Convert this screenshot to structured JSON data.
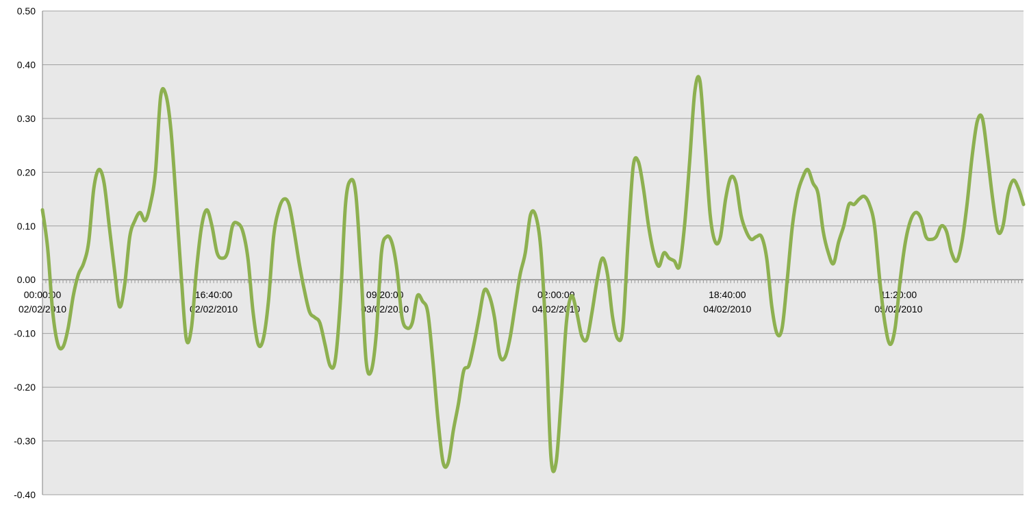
{
  "chart_data": {
    "type": "line",
    "title": "",
    "xlabel": "",
    "ylabel": "",
    "ylim": [
      -0.4,
      0.5
    ],
    "yticks": [
      "0.50",
      "0.40",
      "0.30",
      "0.20",
      "0.10",
      "0.00",
      "-0.10",
      "-0.20",
      "-0.30",
      "-0.40"
    ],
    "xlim": [
      "02/02/2010 00:00:00",
      "05/02/2010 23:30:00"
    ],
    "xtick_labels": [
      {
        "time": "00:00:00",
        "date": "02/02/2010"
      },
      {
        "time": "16:40:00",
        "date": "02/02/2010"
      },
      {
        "time": "09:20:00",
        "date": "03/02/2010"
      },
      {
        "time": "02:00:00",
        "date": "04/02/2010"
      },
      {
        "time": "18:40:00",
        "date": "04/02/2010"
      },
      {
        "time": "11:20:00",
        "date": "05/02/2010"
      }
    ],
    "grid": "horizontal",
    "plot_background": "#e8e8e8",
    "series": [
      {
        "color": "#8db050",
        "points": [
          [
            "02/02/2010 00:00",
            0.13
          ],
          [
            "02/02/2010 00:30",
            0.06
          ],
          [
            "02/02/2010 01:00",
            -0.06
          ],
          [
            "02/02/2010 01:30",
            -0.12
          ],
          [
            "02/02/2010 02:00",
            -0.125
          ],
          [
            "02/02/2010 02:30",
            -0.09
          ],
          [
            "02/02/2010 03:00",
            -0.03
          ],
          [
            "02/02/2010 03:30",
            0.01
          ],
          [
            "02/02/2010 04:00",
            0.03
          ],
          [
            "02/02/2010 04:30",
            0.07
          ],
          [
            "02/02/2010 05:00",
            0.17
          ],
          [
            "02/02/2010 05:30",
            0.205
          ],
          [
            "02/02/2010 06:00",
            0.18
          ],
          [
            "02/02/2010 06:30",
            0.1
          ],
          [
            "02/02/2010 07:00",
            0.02
          ],
          [
            "02/02/2010 07:30",
            -0.05
          ],
          [
            "02/02/2010 08:00",
            -0.01
          ],
          [
            "02/02/2010 08:30",
            0.08
          ],
          [
            "02/02/2010 09:00",
            0.11
          ],
          [
            "02/02/2010 09:30",
            0.125
          ],
          [
            "02/02/2010 10:00",
            0.11
          ],
          [
            "02/02/2010 10:30",
            0.14
          ],
          [
            "02/02/2010 11:00",
            0.2
          ],
          [
            "02/02/2010 11:30",
            0.34
          ],
          [
            "02/02/2010 12:00",
            0.345
          ],
          [
            "02/02/2010 12:30",
            0.28
          ],
          [
            "02/02/2010 13:00",
            0.15
          ],
          [
            "02/02/2010 13:30",
            0.01
          ],
          [
            "02/02/2010 14:00",
            -0.11
          ],
          [
            "02/02/2010 14:30",
            -0.09
          ],
          [
            "02/02/2010 15:00",
            0.02
          ],
          [
            "02/02/2010 15:30",
            0.1
          ],
          [
            "02/02/2010 16:00",
            0.13
          ],
          [
            "02/02/2010 16:30",
            0.1
          ],
          [
            "02/02/2010 17:00",
            0.05
          ],
          [
            "02/02/2010 17:30",
            0.04
          ],
          [
            "02/02/2010 18:00",
            0.05
          ],
          [
            "02/02/2010 18:30",
            0.1
          ],
          [
            "02/02/2010 19:00",
            0.105
          ],
          [
            "02/02/2010 19:30",
            0.09
          ],
          [
            "02/02/2010 20:00",
            0.04
          ],
          [
            "02/02/2010 20:30",
            -0.06
          ],
          [
            "02/02/2010 21:00",
            -0.12
          ],
          [
            "02/02/2010 21:30",
            -0.11
          ],
          [
            "02/02/2010 22:00",
            -0.04
          ],
          [
            "02/02/2010 22:30",
            0.08
          ],
          [
            "02/02/2010 23:00",
            0.13
          ],
          [
            "02/02/2010 23:30",
            0.15
          ],
          [
            "03/02/2010 00:00",
            0.14
          ],
          [
            "03/02/2010 00:30",
            0.09
          ],
          [
            "03/02/2010 01:00",
            0.03
          ],
          [
            "03/02/2010 01:30",
            -0.02
          ],
          [
            "03/02/2010 02:00",
            -0.06
          ],
          [
            "03/02/2010 02:30",
            -0.07
          ],
          [
            "03/02/2010 03:00",
            -0.08
          ],
          [
            "03/02/2010 03:30",
            -0.12
          ],
          [
            "03/02/2010 04:00",
            -0.16
          ],
          [
            "03/02/2010 04:30",
            -0.15
          ],
          [
            "03/02/2010 05:00",
            -0.04
          ],
          [
            "03/02/2010 05:30",
            0.14
          ],
          [
            "03/02/2010 06:00",
            0.185
          ],
          [
            "03/02/2010 06:30",
            0.16
          ],
          [
            "03/02/2010 07:00",
            0.02
          ],
          [
            "03/02/2010 07:30",
            -0.15
          ],
          [
            "03/02/2010 08:00",
            -0.17
          ],
          [
            "03/02/2010 08:30",
            -0.1
          ],
          [
            "03/02/2010 09:00",
            0.05
          ],
          [
            "03/02/2010 09:30",
            0.08
          ],
          [
            "03/02/2010 10:00",
            0.07
          ],
          [
            "03/02/2010 10:30",
            0.02
          ],
          [
            "03/02/2010 11:00",
            -0.07
          ],
          [
            "03/02/2010 11:30",
            -0.09
          ],
          [
            "03/02/2010 12:00",
            -0.08
          ],
          [
            "03/02/2010 12:30",
            -0.03
          ],
          [
            "03/02/2010 13:00",
            -0.04
          ],
          [
            "03/02/2010 13:30",
            -0.06
          ],
          [
            "03/02/2010 14:00",
            -0.15
          ],
          [
            "03/02/2010 14:30",
            -0.26
          ],
          [
            "03/02/2010 15:00",
            -0.34
          ],
          [
            "03/02/2010 15:30",
            -0.34
          ],
          [
            "03/02/2010 16:00",
            -0.28
          ],
          [
            "03/02/2010 16:30",
            -0.23
          ],
          [
            "03/02/2010 17:00",
            -0.17
          ],
          [
            "03/02/2010 17:30",
            -0.16
          ],
          [
            "03/02/2010 18:00",
            -0.12
          ],
          [
            "03/02/2010 18:30",
            -0.07
          ],
          [
            "03/02/2010 19:00",
            -0.02
          ],
          [
            "03/02/2010 19:30",
            -0.03
          ],
          [
            "03/02/2010 20:00",
            -0.07
          ],
          [
            "03/02/2010 20:30",
            -0.14
          ],
          [
            "03/02/2010 21:00",
            -0.145
          ],
          [
            "03/02/2010 21:30",
            -0.11
          ],
          [
            "03/02/2010 22:00",
            -0.05
          ],
          [
            "03/02/2010 22:30",
            0.01
          ],
          [
            "03/02/2010 23:00",
            0.05
          ],
          [
            "03/02/2010 23:30",
            0.12
          ],
          [
            "04/02/2010 00:00",
            0.12
          ],
          [
            "04/02/2010 00:30",
            0.06
          ],
          [
            "04/02/2010 01:00",
            -0.1
          ],
          [
            "04/02/2010 01:30",
            -0.33
          ],
          [
            "04/02/2010 02:00",
            -0.34
          ],
          [
            "04/02/2010 02:30",
            -0.22
          ],
          [
            "04/02/2010 03:00",
            -0.08
          ],
          [
            "04/02/2010 03:30",
            -0.03
          ],
          [
            "04/02/2010 04:00",
            -0.06
          ],
          [
            "04/02/2010 04:30",
            -0.105
          ],
          [
            "04/02/2010 05:00",
            -0.11
          ],
          [
            "04/02/2010 05:30",
            -0.06
          ],
          [
            "04/02/2010 06:00",
            0.0
          ],
          [
            "04/02/2010 06:30",
            0.04
          ],
          [
            "04/02/2010 07:00",
            0.01
          ],
          [
            "04/02/2010 07:30",
            -0.07
          ],
          [
            "04/02/2010 08:00",
            -0.11
          ],
          [
            "04/02/2010 08:30",
            -0.09
          ],
          [
            "04/02/2010 09:00",
            0.07
          ],
          [
            "04/02/2010 09:30",
            0.21
          ],
          [
            "04/02/2010 10:00",
            0.22
          ],
          [
            "04/02/2010 10:30",
            0.17
          ],
          [
            "04/02/2010 11:00",
            0.1
          ],
          [
            "04/02/2010 11:30",
            0.05
          ],
          [
            "04/02/2010 12:00",
            0.025
          ],
          [
            "04/02/2010 12:30",
            0.05
          ],
          [
            "04/02/2010 13:00",
            0.04
          ],
          [
            "04/02/2010 13:30",
            0.035
          ],
          [
            "04/02/2010 14:00",
            0.025
          ],
          [
            "04/02/2010 14:30",
            0.1
          ],
          [
            "04/02/2010 15:00",
            0.22
          ],
          [
            "04/02/2010 15:30",
            0.35
          ],
          [
            "04/02/2010 16:00",
            0.37
          ],
          [
            "04/02/2010 16:30",
            0.25
          ],
          [
            "04/02/2010 17:00",
            0.12
          ],
          [
            "04/02/2010 17:30",
            0.07
          ],
          [
            "04/02/2010 18:00",
            0.08
          ],
          [
            "04/02/2010 18:30",
            0.15
          ],
          [
            "04/02/2010 19:00",
            0.19
          ],
          [
            "04/02/2010 19:30",
            0.18
          ],
          [
            "04/02/2010 20:00",
            0.12
          ],
          [
            "04/02/2010 20:30",
            0.09
          ],
          [
            "04/02/2010 21:00",
            0.075
          ],
          [
            "04/02/2010 21:30",
            0.08
          ],
          [
            "04/02/2010 22:00",
            0.08
          ],
          [
            "04/02/2010 22:30",
            0.04
          ],
          [
            "04/02/2010 23:00",
            -0.05
          ],
          [
            "04/02/2010 23:30",
            -0.1
          ],
          [
            "05/02/2010 00:00",
            -0.09
          ],
          [
            "05/02/2010 00:30",
            0.0
          ],
          [
            "05/02/2010 01:00",
            0.1
          ],
          [
            "05/02/2010 01:30",
            0.16
          ],
          [
            "05/02/2010 02:00",
            0.19
          ],
          [
            "05/02/2010 02:30",
            0.205
          ],
          [
            "05/02/2010 03:00",
            0.18
          ],
          [
            "05/02/2010 03:30",
            0.16
          ],
          [
            "05/02/2010 04:00",
            0.09
          ],
          [
            "05/02/2010 04:30",
            0.05
          ],
          [
            "05/02/2010 05:00",
            0.03
          ],
          [
            "05/02/2010 05:30",
            0.07
          ],
          [
            "05/02/2010 06:00",
            0.1
          ],
          [
            "05/02/2010 06:30",
            0.14
          ],
          [
            "05/02/2010 07:00",
            0.14
          ],
          [
            "05/02/2010 07:30",
            0.15
          ],
          [
            "05/02/2010 08:00",
            0.155
          ],
          [
            "05/02/2010 08:30",
            0.14
          ],
          [
            "05/02/2010 09:00",
            0.1
          ],
          [
            "05/02/2010 09:30",
            0.0
          ],
          [
            "05/02/2010 10:00",
            -0.08
          ],
          [
            "05/02/2010 10:30",
            -0.12
          ],
          [
            "05/02/2010 11:00",
            -0.09
          ],
          [
            "05/02/2010 11:30",
            0.0
          ],
          [
            "05/02/2010 12:00",
            0.07
          ],
          [
            "05/02/2010 12:30",
            0.11
          ],
          [
            "05/02/2010 13:00",
            0.125
          ],
          [
            "05/02/2010 13:30",
            0.115
          ],
          [
            "05/02/2010 14:00",
            0.08
          ],
          [
            "05/02/2010 14:30",
            0.075
          ],
          [
            "05/02/2010 15:00",
            0.08
          ],
          [
            "05/02/2010 15:30",
            0.1
          ],
          [
            "05/02/2010 16:00",
            0.09
          ],
          [
            "05/02/2010 16:30",
            0.05
          ],
          [
            "05/02/2010 17:00",
            0.035
          ],
          [
            "05/02/2010 17:30",
            0.07
          ],
          [
            "05/02/2010 18:00",
            0.14
          ],
          [
            "05/02/2010 18:30",
            0.23
          ],
          [
            "05/02/2010 19:00",
            0.295
          ],
          [
            "05/02/2010 19:30",
            0.3
          ],
          [
            "05/02/2010 20:00",
            0.23
          ],
          [
            "05/02/2010 20:30",
            0.15
          ],
          [
            "05/02/2010 21:00",
            0.09
          ],
          [
            "05/02/2010 21:30",
            0.1
          ],
          [
            "05/02/2010 22:00",
            0.16
          ],
          [
            "05/02/2010 22:30",
            0.185
          ],
          [
            "05/02/2010 23:00",
            0.17
          ],
          [
            "05/02/2010 23:30",
            0.14
          ]
        ]
      }
    ]
  }
}
